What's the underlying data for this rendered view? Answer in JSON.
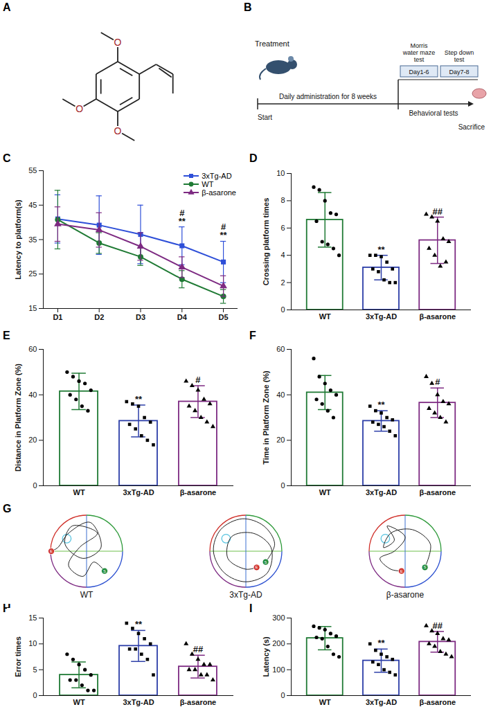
{
  "structure": {
    "panel": "A",
    "atoms": [
      "O",
      "O",
      "O"
    ]
  },
  "timeline": {
    "panel": "B",
    "treatment": "Treatment",
    "start": "Start",
    "period": "Daily administration for 8 weeks",
    "tests": [
      {
        "name": "Morris water maze test",
        "days": "Day1-6"
      },
      {
        "name": "Step down test",
        "days": "Day7-8"
      }
    ],
    "phase": "Behavioral tests",
    "end": "Sacrifice"
  },
  "chart_data": [
    {
      "panel": "C",
      "type": "line",
      "ylabel": "Latency to platform(s)",
      "categories": [
        "D1",
        "D2",
        "D3",
        "D4",
        "D5"
      ],
      "ylim": [
        15,
        55
      ],
      "yticks": [
        15,
        25,
        35,
        45,
        55
      ],
      "legend": "top-right",
      "series": [
        {
          "name": "3xTg-AD",
          "color": "#2e4fd8",
          "marker": "square",
          "values": [
            41,
            39.2,
            36.5,
            33.2,
            28.5
          ],
          "errors": [
            7,
            8.5,
            8.5,
            5.5,
            6
          ]
        },
        {
          "name": "WT",
          "color": "#1f7a34",
          "marker": "circle",
          "values": [
            40.8,
            34,
            30,
            23.5,
            18.5
          ],
          "errors": [
            8.5,
            3,
            2.5,
            2.5,
            2
          ]
        },
        {
          "name": "β-asarone",
          "color": "#7d2a82",
          "marker": "triangle",
          "values": [
            39.5,
            37.8,
            33,
            27,
            21.5
          ],
          "errors": [
            5,
            5,
            4,
            3,
            3
          ]
        }
      ],
      "annotations": [
        {
          "x": "D4",
          "text": "**"
        },
        {
          "x": "D4",
          "text": "#"
        },
        {
          "x": "D5",
          "text": "**"
        },
        {
          "x": "D5",
          "text": "#"
        }
      ]
    },
    {
      "panel": "D",
      "type": "bar",
      "ylabel": "Crossing platform times",
      "ylim": [
        0,
        10
      ],
      "yticks": [
        0,
        2,
        4,
        6,
        8,
        10
      ],
      "series": [
        {
          "name": "WT",
          "color": "#1f7a34",
          "marker": "circle",
          "values": [
            6.6
          ],
          "errors": [
            2.0
          ],
          "points": [
            9,
            8.8,
            8,
            7.1,
            7,
            6.5,
            5,
            4.8,
            4.5,
            4
          ]
        },
        {
          "name": "3xTg-AD",
          "color": "#2c3ea8",
          "marker": "square",
          "values": [
            3.1
          ],
          "errors": [
            0.9
          ],
          "points": [
            4,
            4,
            3.9,
            3.5,
            3,
            3,
            2.8,
            2.2,
            2,
            2
          ]
        },
        {
          "name": "β-asarone",
          "color": "#7d2a82",
          "marker": "triangle",
          "values": [
            5.1
          ],
          "errors": [
            1.7
          ],
          "points": [
            7,
            6.8,
            6.5,
            5.2,
            5,
            4.5,
            4,
            3.2,
            3.5
          ]
        }
      ],
      "annotations": [
        {
          "x": "3xTg-AD",
          "text": "**"
        },
        {
          "x": "β-asarone",
          "text": "##"
        }
      ]
    },
    {
      "panel": "E",
      "type": "bar",
      "ylabel": "Distance in Platform Zone (%)",
      "ylim": [
        0,
        60
      ],
      "yticks": [
        0,
        20,
        40,
        60
      ],
      "series": [
        {
          "name": "WT",
          "color": "#1f7a34",
          "marker": "circle",
          "values": [
            41.5
          ],
          "errors": [
            8
          ],
          "points": [
            50,
            48,
            46,
            45,
            42,
            40,
            38,
            35,
            33
          ]
        },
        {
          "name": "3xTg-AD",
          "color": "#2c3ea8",
          "marker": "square",
          "values": [
            28.5
          ],
          "errors": [
            7
          ],
          "points": [
            37,
            36,
            35,
            30,
            28,
            27,
            25,
            22,
            20,
            18
          ]
        },
        {
          "name": "β-asarone",
          "color": "#7d2a82",
          "marker": "triangle",
          "values": [
            37
          ],
          "errors": [
            7
          ],
          "points": [
            46,
            44,
            42,
            38,
            36,
            35,
            33,
            30,
            28,
            26
          ]
        }
      ],
      "annotations": [
        {
          "x": "3xTg-AD",
          "text": "**"
        },
        {
          "x": "β-asarone",
          "text": "#"
        }
      ]
    },
    {
      "panel": "F",
      "type": "bar",
      "ylabel": "Time in Platform Zone (%)",
      "ylim": [
        0,
        60
      ],
      "yticks": [
        0,
        20,
        40,
        60
      ],
      "series": [
        {
          "name": "WT",
          "color": "#1f7a34",
          "marker": "circle",
          "values": [
            41
          ],
          "errors": [
            7.5
          ],
          "points": [
            56,
            48,
            45,
            42,
            40,
            38,
            36,
            33,
            30
          ]
        },
        {
          "name": "3xTg-AD",
          "color": "#2c3ea8",
          "marker": "square",
          "values": [
            28.5
          ],
          "errors": [
            4.5
          ],
          "points": [
            35,
            33,
            32,
            30,
            29,
            28,
            27,
            26,
            24,
            22
          ]
        },
        {
          "name": "β-asarone",
          "color": "#7d2a82",
          "marker": "triangle",
          "values": [
            36.5
          ],
          "errors": [
            6.5
          ],
          "points": [
            48,
            45,
            40,
            37,
            36,
            34,
            32,
            30,
            28
          ]
        }
      ],
      "annotations": [
        {
          "x": "3xTg-AD",
          "text": "**"
        },
        {
          "x": "β-asarone",
          "text": "#"
        }
      ]
    },
    {
      "panel": "H",
      "type": "bar",
      "ylabel": "Error times",
      "ylim": [
        0,
        15
      ],
      "yticks": [
        0,
        5,
        10,
        15
      ],
      "series": [
        {
          "name": "WT",
          "color": "#1f7a34",
          "marker": "circle",
          "values": [
            4
          ],
          "errors": [
            2.5
          ],
          "points": [
            8,
            7,
            6,
            5,
            4,
            3,
            3,
            2,
            1,
            1
          ]
        },
        {
          "name": "3xTg-AD",
          "color": "#2c3ea8",
          "marker": "square",
          "values": [
            9.6
          ],
          "errors": [
            3
          ],
          "points": [
            14,
            13,
            12,
            11,
            10,
            9,
            9,
            8,
            7,
            4
          ]
        },
        {
          "name": "β-asarone",
          "color": "#7d2a82",
          "marker": "triangle",
          "values": [
            5.6
          ],
          "errors": [
            2.2
          ],
          "points": [
            10,
            8,
            7,
            6,
            6,
            5,
            5,
            4,
            4,
            3
          ]
        }
      ],
      "annotations": [
        {
          "x": "3xTg-AD",
          "text": "**"
        },
        {
          "x": "β-asarone",
          "text": "##"
        }
      ]
    },
    {
      "panel": "I",
      "type": "bar",
      "ylabel": "Latency (s)",
      "ylim": [
        0,
        300
      ],
      "yticks": [
        0,
        100,
        200,
        300
      ],
      "series": [
        {
          "name": "WT",
          "color": "#1f7a34",
          "marker": "circle",
          "values": [
            222
          ],
          "errors": [
            45
          ],
          "points": [
            268,
            262,
            255,
            240,
            230,
            225,
            220,
            190,
            160,
            150
          ]
        },
        {
          "name": "3xTg-AD",
          "color": "#2c3ea8",
          "marker": "square",
          "values": [
            135
          ],
          "errors": [
            45
          ],
          "points": [
            200,
            175,
            160,
            150,
            140,
            130,
            120,
            100,
            90,
            80
          ]
        },
        {
          "name": "β-asarone",
          "color": "#7d2a82",
          "marker": "triangle",
          "values": [
            208
          ],
          "errors": [
            40
          ],
          "points": [
            270,
            250,
            240,
            220,
            215,
            200,
            190,
            170,
            160,
            150
          ]
        }
      ],
      "annotations": [
        {
          "x": "3xTg-AD",
          "text": "**"
        },
        {
          "x": "β-asarone",
          "text": "##"
        }
      ]
    }
  ],
  "trajectories": {
    "panel": "G",
    "start_label": "S",
    "end_label": "E",
    "pools": [
      {
        "name": "WT",
        "platform": [
          -0.55,
          0.35
        ],
        "path": [
          [
            0.5,
            -0.55
          ],
          [
            0.2,
            -0.3
          ],
          [
            -0.1,
            -0.7
          ],
          [
            -0.5,
            -0.4
          ],
          [
            -0.2,
            0.1
          ],
          [
            0.3,
            0.5
          ],
          [
            -0.4,
            0.7
          ],
          [
            -0.6,
            0.2
          ],
          [
            -0.1,
            -0.2
          ],
          [
            0.4,
            0.1
          ],
          [
            0.1,
            0.8
          ],
          [
            -0.5,
            0.5
          ],
          [
            -0.8,
            0.1
          ],
          [
            -0.98,
            0.0
          ]
        ]
      },
      {
        "name": "3xTg-AD",
        "platform": [
          -0.55,
          0.35
        ],
        "path": [
          [
            0.55,
            -0.3
          ],
          [
            0.8,
            0.2
          ],
          [
            0.5,
            0.7
          ],
          [
            -0.1,
            0.9
          ],
          [
            -0.7,
            0.6
          ],
          [
            -0.9,
            0
          ],
          [
            -0.6,
            -0.6
          ],
          [
            0,
            -0.85
          ],
          [
            0.6,
            -0.6
          ],
          [
            0.7,
            0.1
          ],
          [
            0.2,
            0.5
          ],
          [
            -0.4,
            0.4
          ],
          [
            -0.5,
            -0.2
          ],
          [
            0,
            -0.5
          ],
          [
            0.3,
            -0.45
          ]
        ]
      },
      {
        "name": "β-asarone",
        "platform": [
          -0.55,
          0.35
        ],
        "path": [
          [
            0.55,
            -0.45
          ],
          [
            0.7,
            0.2
          ],
          [
            0.2,
            0.6
          ],
          [
            -0.4,
            0.5
          ],
          [
            -0.6,
            0.1
          ],
          [
            -0.3,
            0.3
          ],
          [
            -0.5,
            0.7
          ],
          [
            0,
            0.4
          ],
          [
            -0.3,
            0
          ],
          [
            -0.7,
            -0.2
          ],
          [
            -0.4,
            -0.5
          ],
          [
            -0.1,
            -0.55
          ]
        ]
      }
    ]
  }
}
